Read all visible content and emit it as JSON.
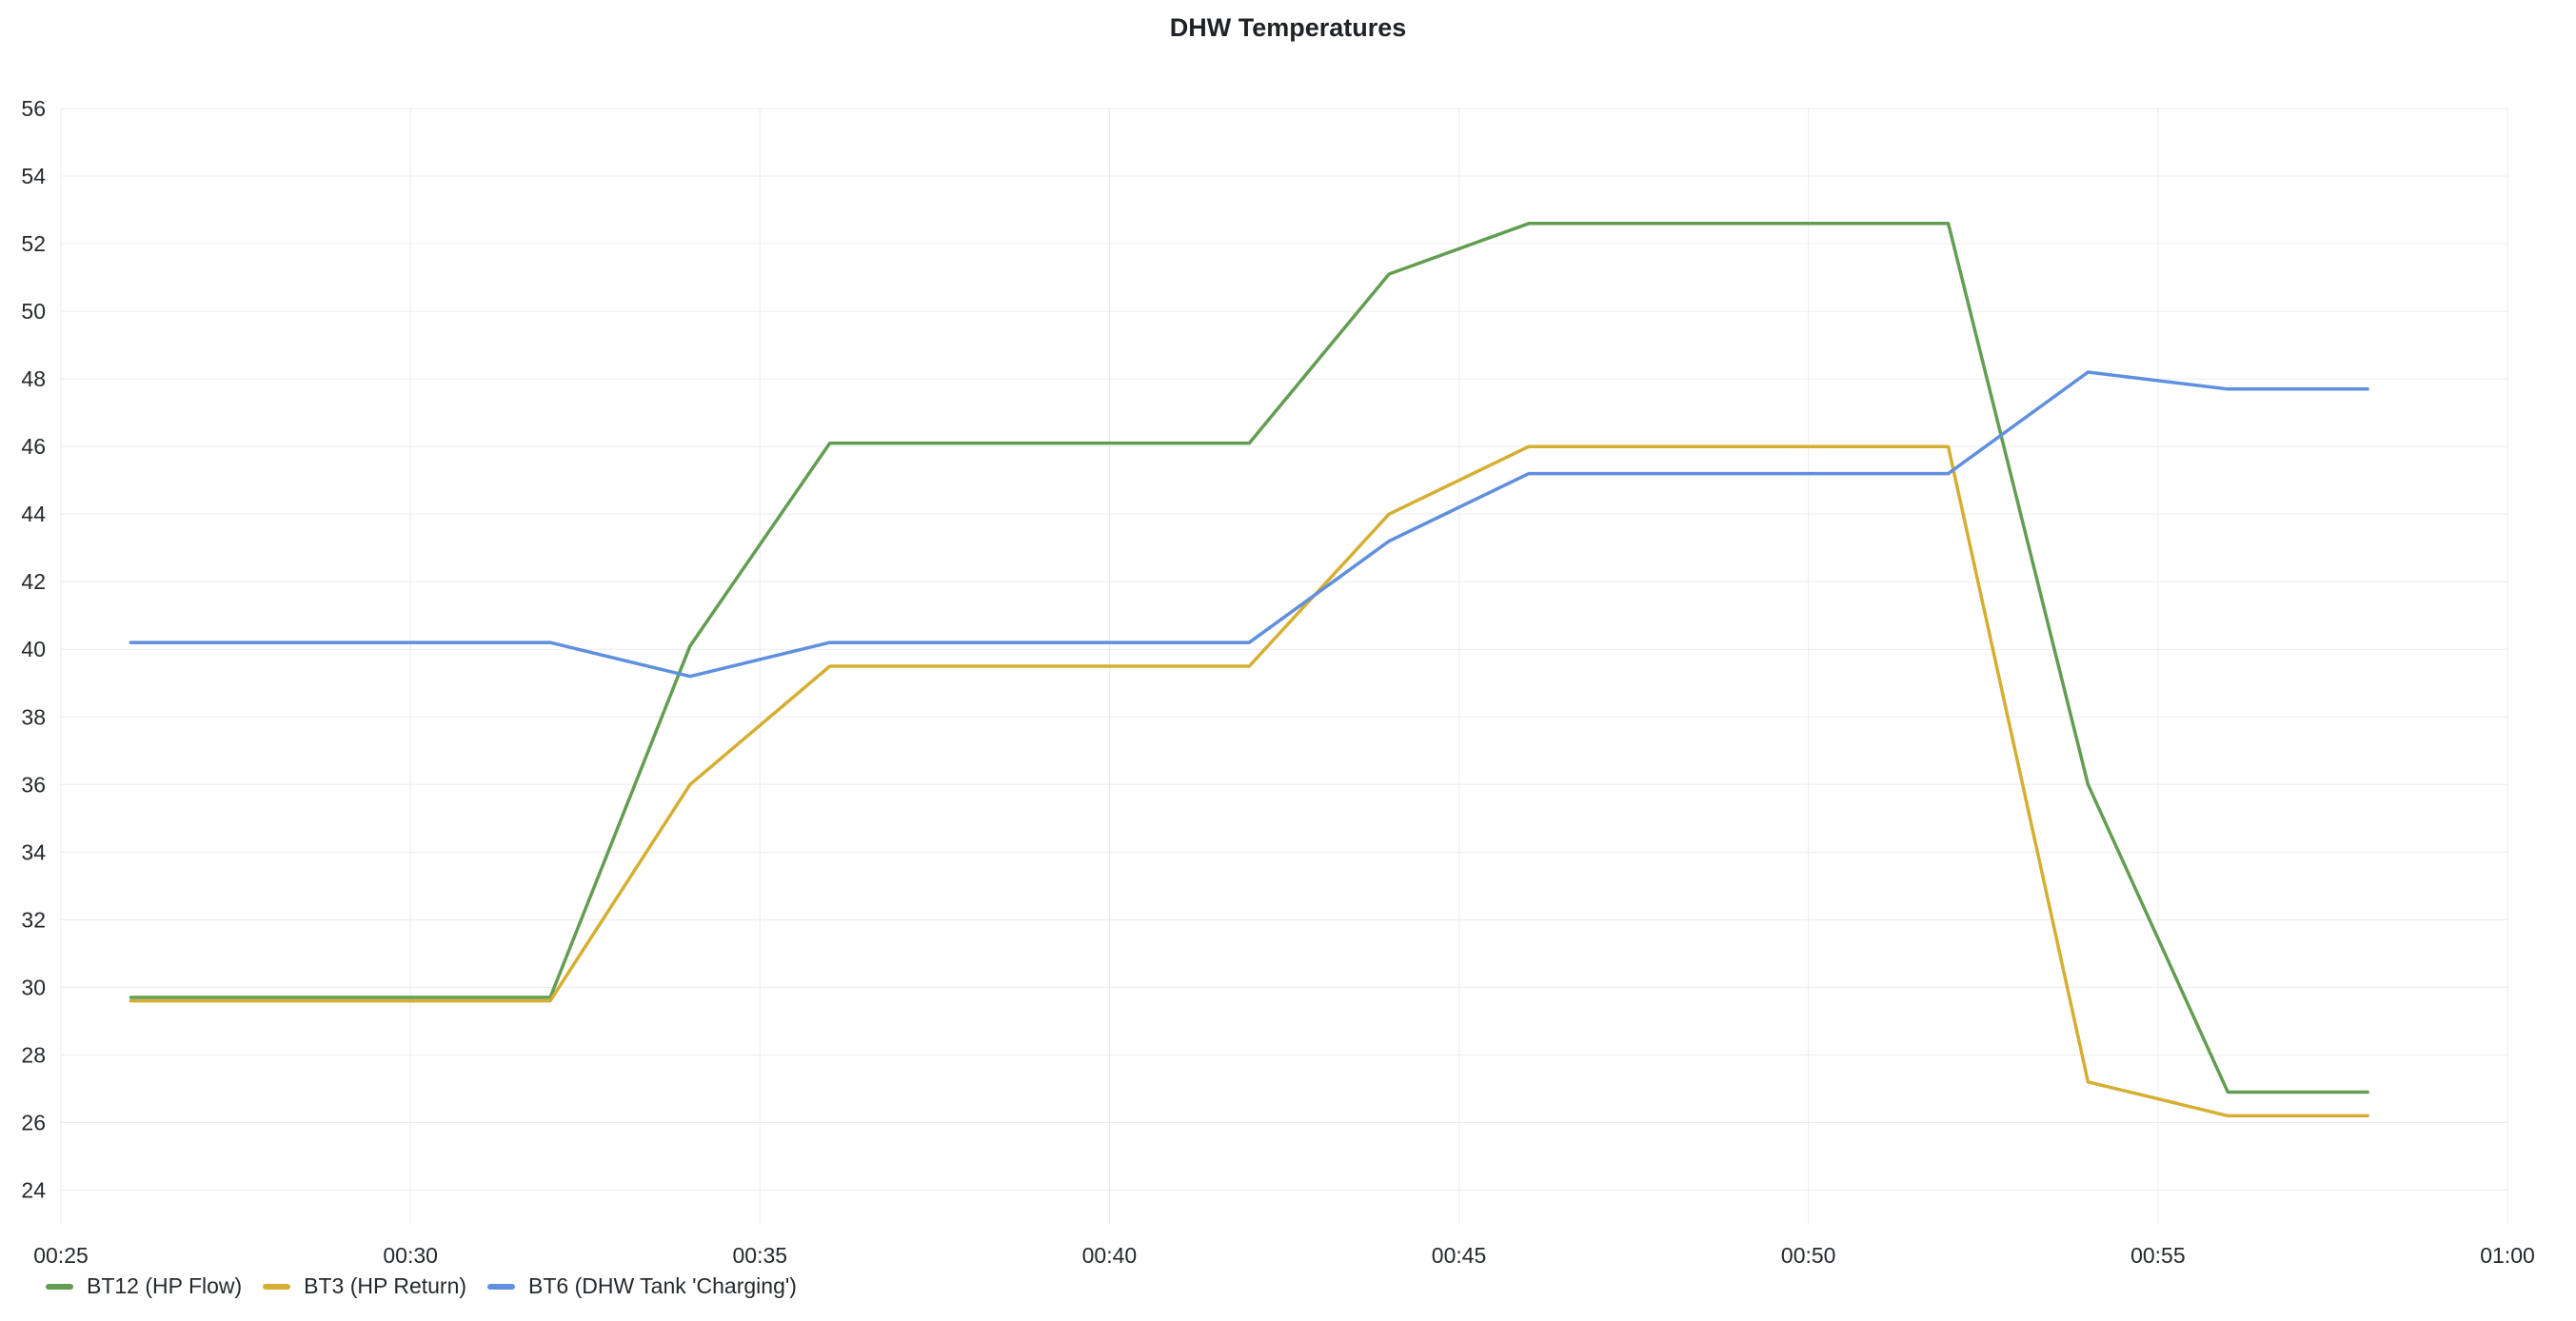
{
  "chart_data": {
    "type": "line",
    "title": "DHW Temperatures",
    "xlabel": "",
    "ylabel": "",
    "x_ticks": [
      "00:25",
      "00:30",
      "00:35",
      "00:40",
      "00:45",
      "00:50",
      "00:55",
      "01:00"
    ],
    "y_ticks": [
      24,
      26,
      28,
      30,
      32,
      34,
      36,
      38,
      40,
      42,
      44,
      46,
      48,
      50,
      52,
      54,
      56
    ],
    "xlim": [
      "00:25",
      "01:00"
    ],
    "ylim": [
      23,
      56
    ],
    "grid": true,
    "legend_position": "bottom-left",
    "x": [
      "00:26",
      "00:32",
      "00:34",
      "00:36",
      "00:42",
      "00:44",
      "00:46",
      "00:52",
      "00:54",
      "00:56",
      "00:58"
    ],
    "series": [
      {
        "name": "BT12 (HP Flow)",
        "color": "#629e51",
        "values": [
          29.7,
          29.7,
          40.1,
          46.1,
          46.1,
          51.1,
          52.6,
          52.6,
          36.0,
          26.9,
          26.9
        ]
      },
      {
        "name": "BT3 (HP Return)",
        "color": "#d6ae32",
        "values": [
          29.6,
          29.6,
          36.0,
          39.5,
          39.5,
          44.0,
          46.0,
          46.0,
          27.2,
          26.2,
          26.2
        ]
      },
      {
        "name": "BT6 (DHW Tank 'Charging')",
        "color": "#5f8fdf",
        "values": [
          40.2,
          40.2,
          39.2,
          40.2,
          40.2,
          43.2,
          45.2,
          45.2,
          48.2,
          47.7,
          47.7
        ]
      }
    ]
  }
}
